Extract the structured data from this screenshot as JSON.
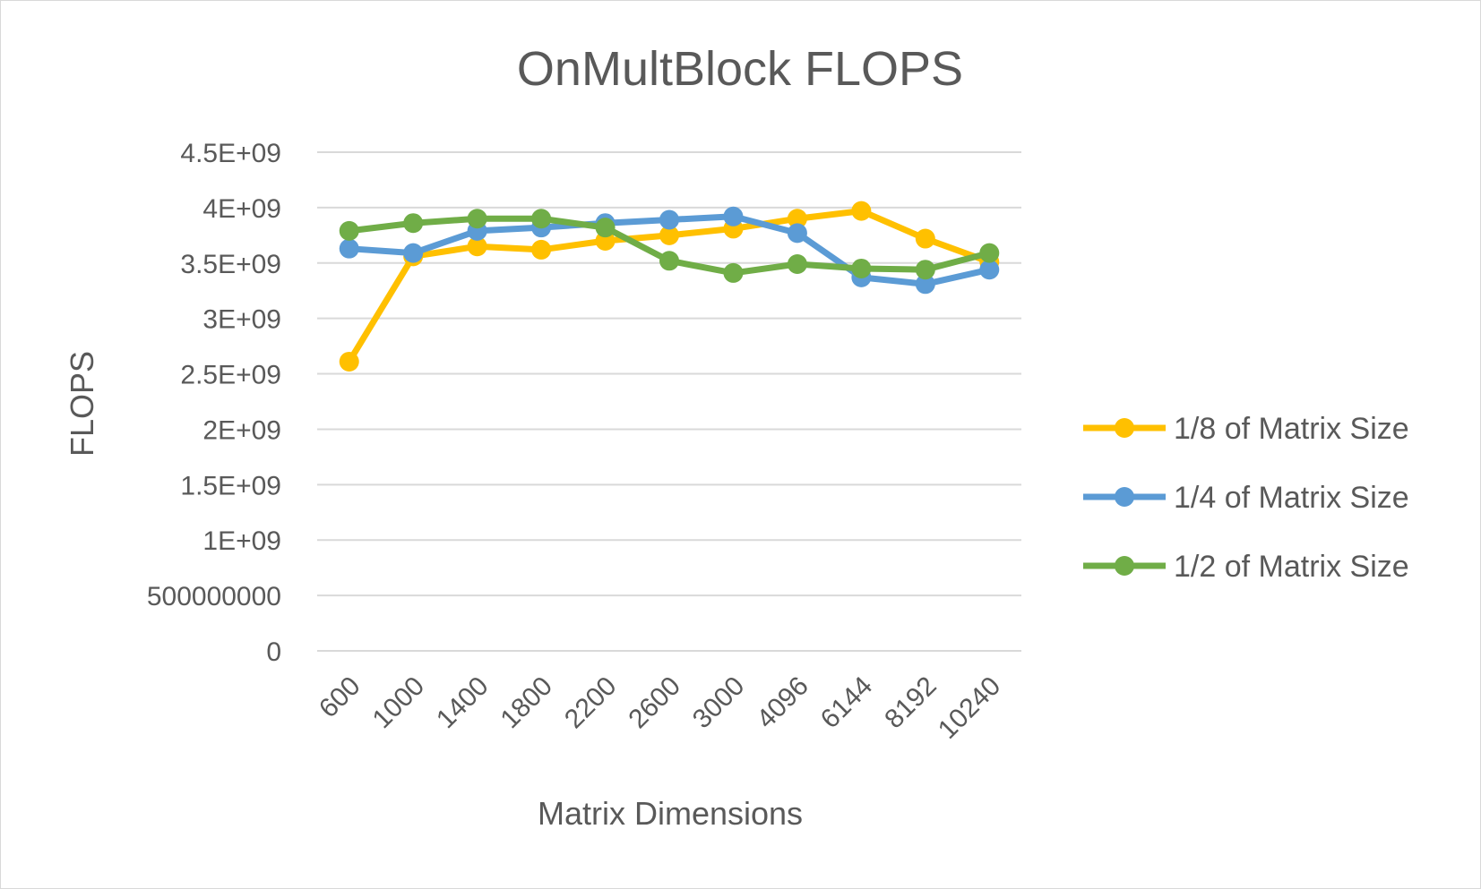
{
  "chart_data": {
    "type": "line",
    "title": "OnMultBlock FLOPS",
    "xlabel": "Matrix Dimensions",
    "ylabel": "FLOPS",
    "categories": [
      "600",
      "1000",
      "1400",
      "1800",
      "2200",
      "2600",
      "3000",
      "4096",
      "6144",
      "8192",
      "10240"
    ],
    "y_ticks": [
      "0",
      "500000000",
      "1E+09",
      "1.5E+09",
      "2E+09",
      "2.5E+09",
      "3E+09",
      "3.5E+09",
      "4E+09",
      "4.5E+09"
    ],
    "ylim": [
      0,
      4500000000
    ],
    "grid": true,
    "legend_position": "right",
    "series": [
      {
        "name": "1/8 of Matrix Size",
        "color": "#FFC000",
        "values": [
          2610000000,
          3560000000,
          3650000000,
          3620000000,
          3700000000,
          3750000000,
          3810000000,
          3900000000,
          3970000000,
          3720000000,
          3510000000
        ]
      },
      {
        "name": "1/4 of Matrix Size",
        "color": "#5B9BD5",
        "values": [
          3630000000,
          3590000000,
          3790000000,
          3820000000,
          3860000000,
          3890000000,
          3920000000,
          3770000000,
          3370000000,
          3310000000,
          3440000000
        ]
      },
      {
        "name": "1/2 of Matrix Size",
        "color": "#70AD47",
        "values": [
          3790000000,
          3860000000,
          3900000000,
          3900000000,
          3820000000,
          3520000000,
          3410000000,
          3490000000,
          3450000000,
          3440000000,
          3590000000
        ]
      }
    ]
  }
}
